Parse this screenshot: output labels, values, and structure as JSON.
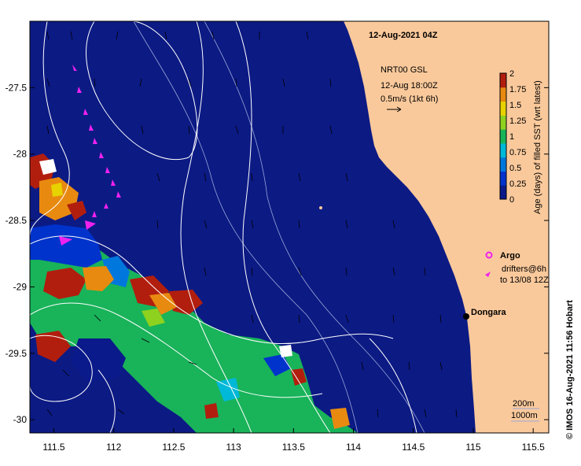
{
  "title": "12-Aug-2021 04Z",
  "vector_source": {
    "line1": "NRT00 GSL",
    "line2": "12-Aug 18:00Z",
    "line3": "0.5m/s (1kt 6h)"
  },
  "colorbar": {
    "label": "Age (days) of filled SST (wrt latest)",
    "ticks": [
      "0",
      "0.25",
      "0.5",
      "0.75",
      "1",
      "1.25",
      "1.5",
      "1.75",
      "2"
    ],
    "colors": [
      "#0a1a8a",
      "#0033cc",
      "#0077dd",
      "#00b8d8",
      "#19b35a",
      "#8fd11f",
      "#e8d200",
      "#e88a10",
      "#b21e0e"
    ]
  },
  "legend": {
    "argo_label": "Argo",
    "drifters_line1": "drifters@6h",
    "drifters_line2": "to 13/08 12Z",
    "argo_color": "#ee22ee"
  },
  "place": {
    "name": "Dongara"
  },
  "isobaths": {
    "line1": "200m",
    "line2": "1000m"
  },
  "credit": "© IMOS 16-Aug-2021 11:56 Hobart",
  "axes": {
    "x_ticks": [
      "111.5",
      "112",
      "112.5",
      "113",
      "113.5",
      "114",
      "114.5",
      "115",
      "115.5"
    ],
    "y_ticks": [
      "-27.5",
      "-28",
      "-28.5",
      "-29",
      "-29.5",
      "-30"
    ],
    "x_range": [
      111.3,
      115.63
    ],
    "y_range": [
      -30.1,
      -27.0
    ]
  },
  "colors": {
    "ocean": "#0c1a84",
    "land": "#fac99b",
    "contour": "#ffffff",
    "vector": "#000000"
  }
}
